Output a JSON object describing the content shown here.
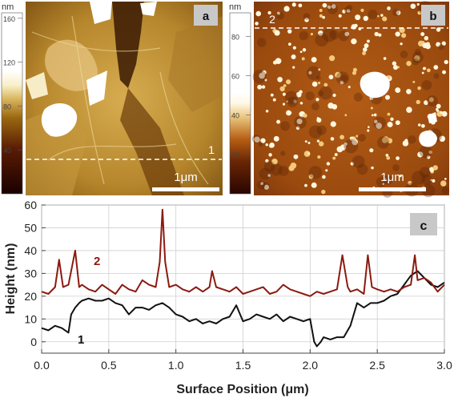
{
  "panel_a": {
    "letter": "a",
    "unit": "nm",
    "colorbar_ticks": [
      {
        "label": "160",
        "value": 160
      },
      {
        "label": "120",
        "value": 120
      },
      {
        "label": "80",
        "value": 80
      },
      {
        "label": "40",
        "value": 40
      }
    ],
    "colorbar_range": [
      0,
      165
    ],
    "line_label": "1",
    "scale_bar_label": "1μm",
    "colors": {
      "low": "#1a0000",
      "mid": "#8a5a0a",
      "high": "#f2e2a8",
      "top": "#ffffff"
    }
  },
  "panel_b": {
    "letter": "b",
    "unit": "nm",
    "colorbar_ticks": [
      {
        "label": "80",
        "value": 80
      },
      {
        "label": "60",
        "value": 60
      },
      {
        "label": "40",
        "value": 40
      },
      {
        "label": "20",
        "value": 20
      }
    ],
    "colorbar_range": [
      0,
      92
    ],
    "line_label": "2",
    "scale_bar_label": "1μm",
    "colors": {
      "low": "#2a0500",
      "mid": "#b25a12",
      "high": "#f0d8a0",
      "top": "#ffffff"
    }
  },
  "panel_c": {
    "letter": "c",
    "profile_labels": {
      "profile_1": "1",
      "profile_2": "2"
    },
    "colors": {
      "profile_1": "#111111",
      "profile_2": "#8b1a10"
    }
  },
  "chart_data": {
    "type": "line",
    "xlabel": "Surface Position (μm)",
    "ylabel": "Height (nm)",
    "xlim": [
      0,
      3.0
    ],
    "ylim": [
      -5,
      60
    ],
    "xticks": [
      {
        "label": "0.0",
        "value": 0.0
      },
      {
        "label": "0.5",
        "value": 0.5
      },
      {
        "label": "1.0",
        "value": 1.0
      },
      {
        "label": "1.5",
        "value": 1.5
      },
      {
        "label": "2.0",
        "value": 2.0
      },
      {
        "label": "2.5",
        "value": 2.5
      },
      {
        "label": "3.0",
        "value": 3.0
      }
    ],
    "yticks": [
      {
        "label": "0",
        "value": 0
      },
      {
        "label": "10",
        "value": 10
      },
      {
        "label": "20",
        "value": 20
      },
      {
        "label": "30",
        "value": 30
      },
      {
        "label": "40",
        "value": 40
      },
      {
        "label": "50",
        "value": 50
      },
      {
        "label": "60",
        "value": 60
      }
    ],
    "grid": true,
    "series": [
      {
        "name": "1",
        "x": [
          0.0,
          0.05,
          0.1,
          0.15,
          0.2,
          0.22,
          0.25,
          0.28,
          0.3,
          0.35,
          0.4,
          0.45,
          0.5,
          0.55,
          0.6,
          0.65,
          0.7,
          0.75,
          0.8,
          0.85,
          0.9,
          0.95,
          1.0,
          1.05,
          1.1,
          1.15,
          1.2,
          1.25,
          1.3,
          1.35,
          1.4,
          1.45,
          1.5,
          1.55,
          1.6,
          1.65,
          1.7,
          1.75,
          1.8,
          1.85,
          1.9,
          1.95,
          2.0,
          2.03,
          2.05,
          2.08,
          2.1,
          2.15,
          2.2,
          2.25,
          2.3,
          2.35,
          2.4,
          2.45,
          2.5,
          2.55,
          2.6,
          2.65,
          2.7,
          2.75,
          2.8,
          2.85,
          2.9,
          2.95,
          3.0
        ],
        "y": [
          6,
          5,
          7,
          6,
          4,
          12,
          15,
          17,
          18,
          19,
          18,
          18,
          19,
          17,
          16,
          12,
          15,
          15,
          14,
          16,
          17,
          15,
          12,
          11,
          9,
          10,
          8,
          9,
          8,
          10,
          11,
          16,
          9,
          10,
          12,
          11,
          10,
          12,
          9,
          11,
          10,
          9,
          10,
          0,
          -2,
          0,
          2,
          1,
          2,
          2,
          7,
          17,
          15,
          17,
          17,
          18,
          20,
          21,
          25,
          29,
          31,
          28,
          25,
          24,
          26
        ]
      },
      {
        "name": "2",
        "x": [
          0.0,
          0.05,
          0.1,
          0.13,
          0.16,
          0.2,
          0.25,
          0.28,
          0.3,
          0.35,
          0.4,
          0.45,
          0.5,
          0.55,
          0.6,
          0.65,
          0.7,
          0.75,
          0.8,
          0.85,
          0.88,
          0.9,
          0.92,
          0.95,
          1.0,
          1.05,
          1.1,
          1.15,
          1.2,
          1.25,
          1.27,
          1.3,
          1.35,
          1.4,
          1.45,
          1.5,
          1.55,
          1.6,
          1.65,
          1.7,
          1.75,
          1.8,
          1.85,
          1.9,
          1.95,
          2.0,
          2.05,
          2.1,
          2.15,
          2.2,
          2.24,
          2.28,
          2.3,
          2.35,
          2.4,
          2.43,
          2.46,
          2.5,
          2.55,
          2.6,
          2.65,
          2.7,
          2.75,
          2.78,
          2.8,
          2.85,
          2.9,
          2.95,
          3.0
        ],
        "y": [
          22,
          21,
          24,
          36,
          24,
          25,
          40,
          24,
          25,
          23,
          22,
          25,
          23,
          21,
          25,
          23,
          22,
          27,
          25,
          24,
          35,
          58,
          35,
          24,
          25,
          23,
          22,
          24,
          22,
          24,
          31,
          24,
          23,
          22,
          24,
          21,
          22,
          23,
          24,
          21,
          22,
          25,
          23,
          22,
          21,
          20,
          22,
          21,
          22,
          23,
          38,
          24,
          22,
          23,
          21,
          38,
          24,
          23,
          22,
          23,
          22,
          24,
          25,
          38,
          27,
          28,
          26,
          22,
          25
        ]
      }
    ]
  }
}
